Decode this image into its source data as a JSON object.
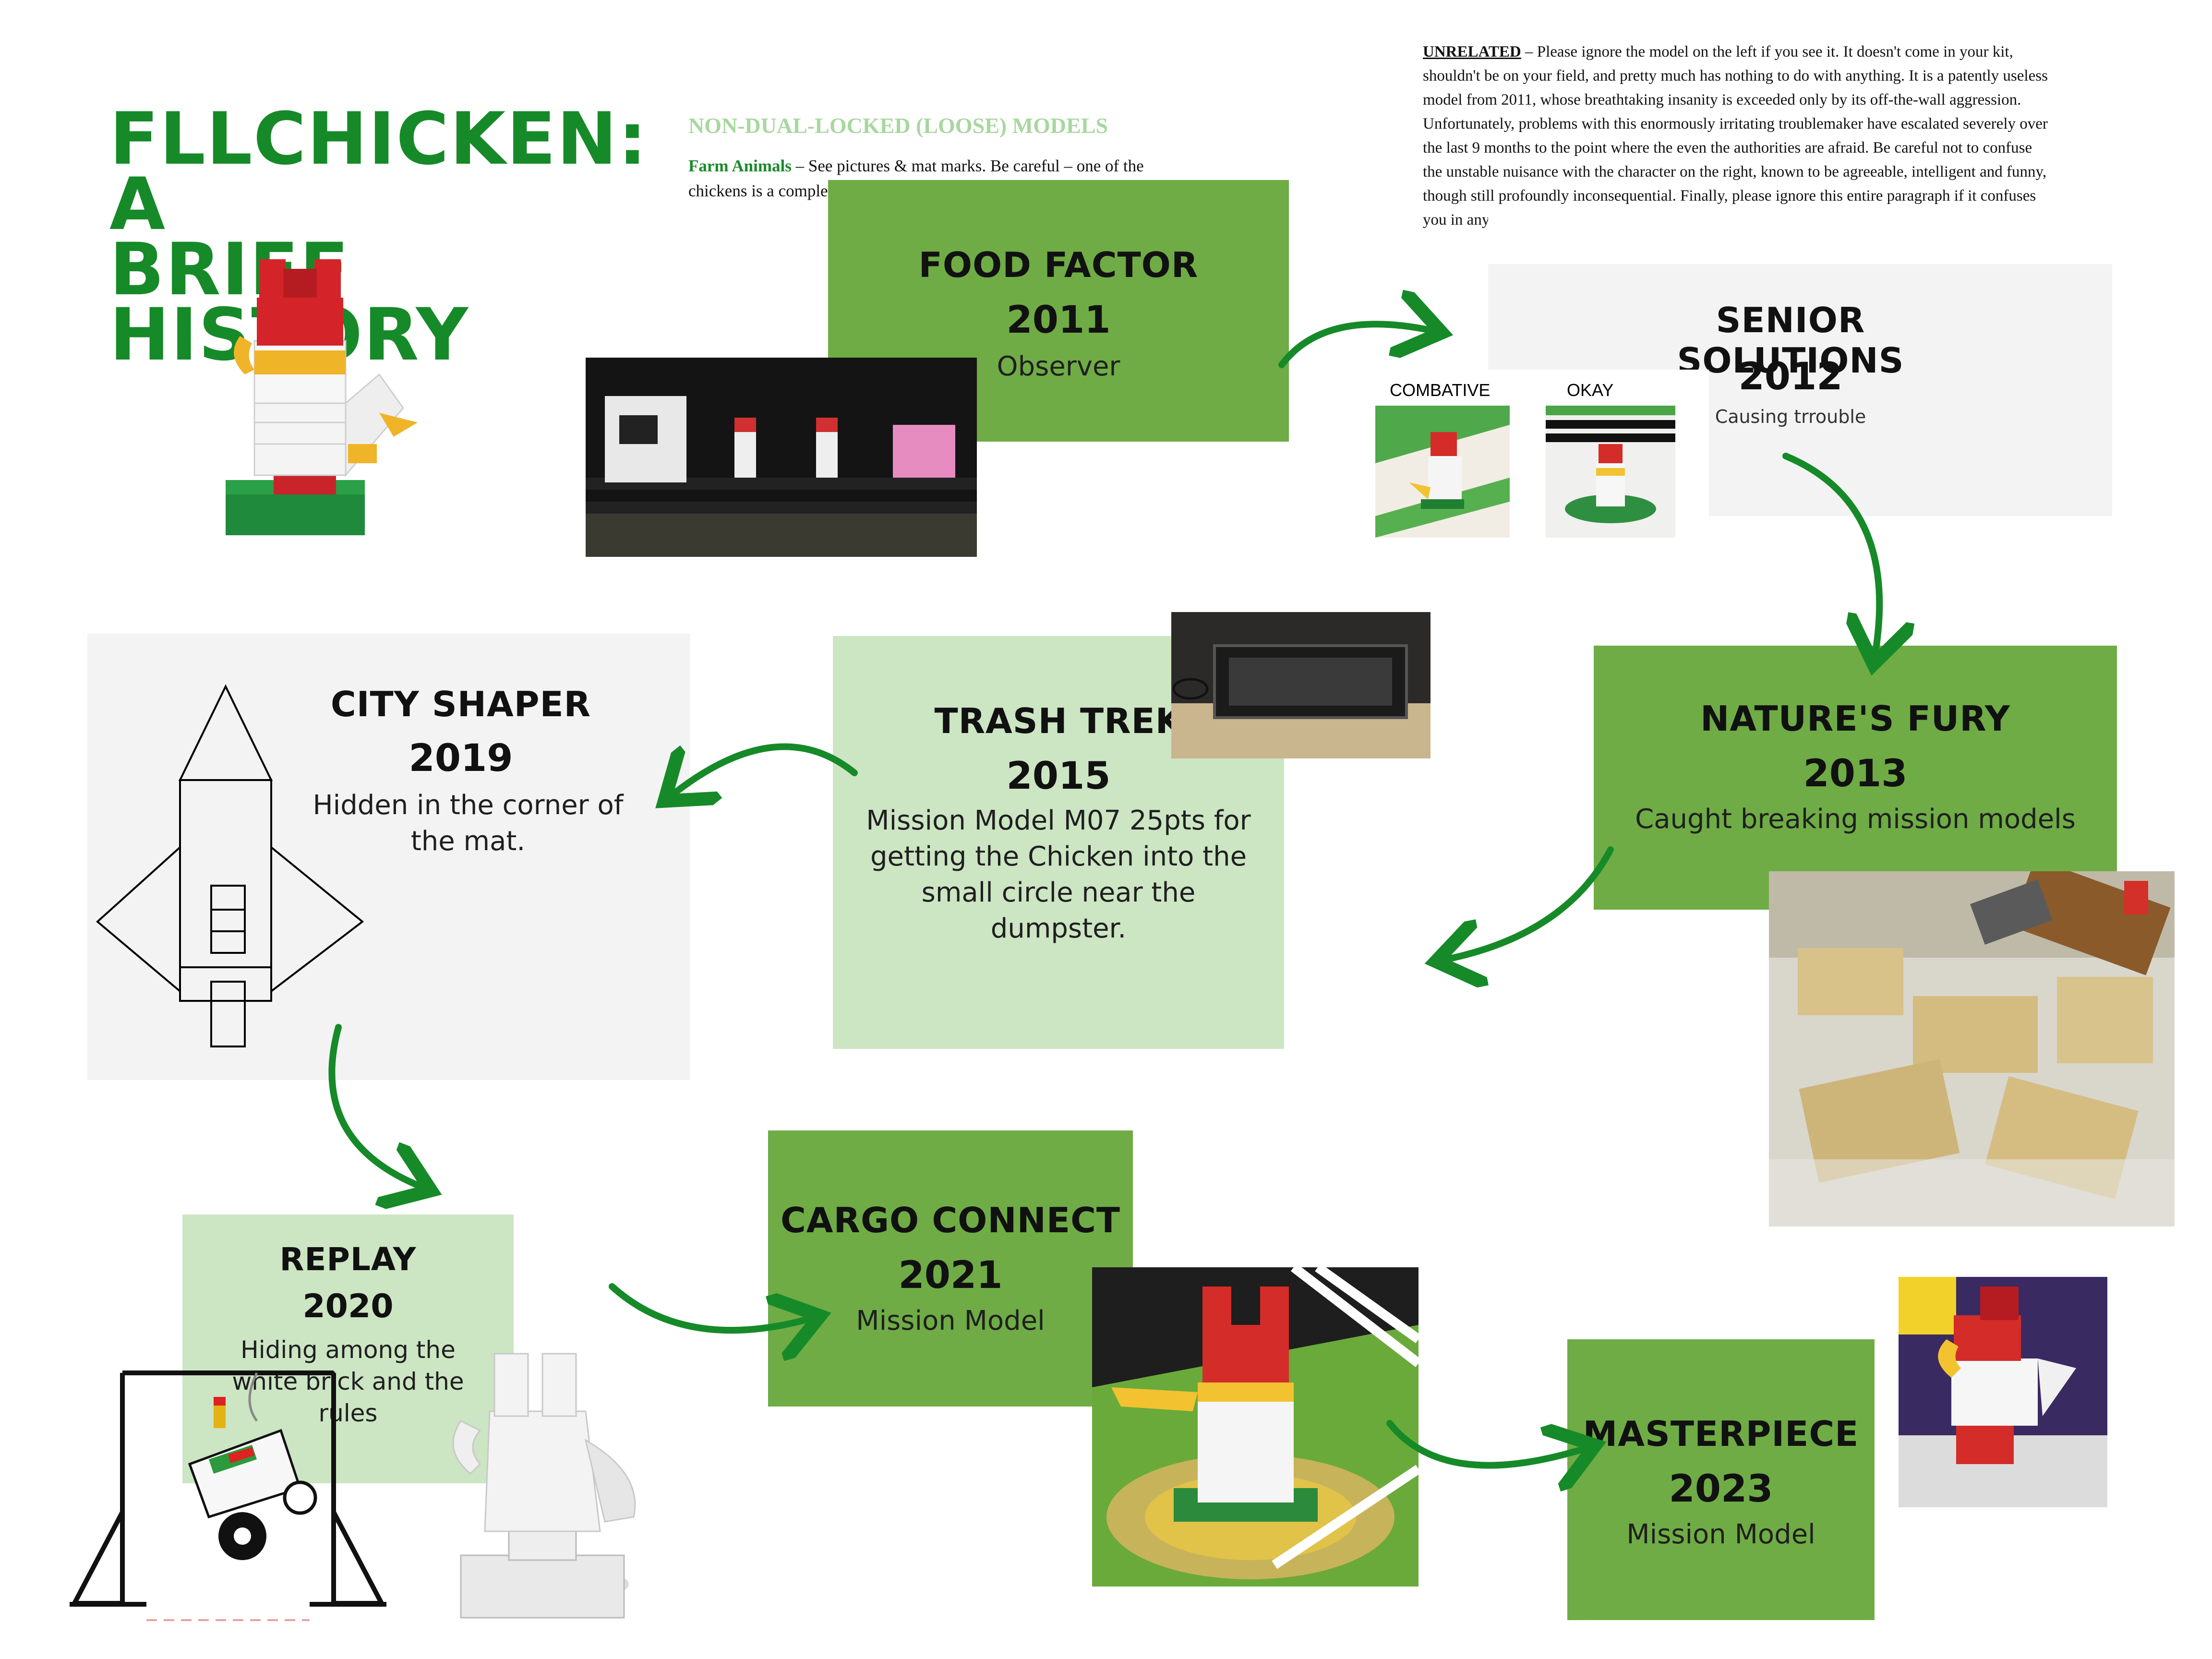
{
  "title_line1": "FLLCHICKEN: A",
  "title_line2": "BRIEF HISTORY",
  "loose_note": {
    "heading": "NON-DUAL-LOCKED (LOOSE) MODELS",
    "label": "Farm Animals",
    "text": " – See pictures & mat marks. Be careful – one of the chickens is a complete lunatic."
  },
  "unrelated_note": {
    "label": "UNRELATED",
    "text": " – Please ignore the model on the left if you see it.  It doesn't come in your kit, shouldn't be on your field, and pretty much has nothing to do with anything.  It is a patently useless model from 2011, whose breathtaking insanity is exceeded only by its off-the-wall aggression.  Unfortunately, problems with this enormously irritating troublemaker have escalated severely over the last 9 months to the point where the even the authorities are afraid.  Be careful not to confuse the unstable nuisance with the character on the right, known to be agreeable, intelligent and funny, though still profoundly inconsequential.  Finally, please ignore this entire paragraph if it confuses you in any way."
  },
  "photo_labels": {
    "combative": "COMBATIVE",
    "okay": "OKAY"
  },
  "cards": {
    "food_factor": {
      "title": "FOOD FACTOR",
      "year": "2011",
      "desc": "Observer"
    },
    "senior_solutions": {
      "title": "SENIOR SOLUTIONS",
      "year": "2012",
      "desc": "Causing trrouble"
    },
    "natures_fury": {
      "title": "NATURE'S FURY",
      "year": "2013",
      "desc": "Caught breaking mission models"
    },
    "trash_trek": {
      "title": "TRASH TREK",
      "year": "2015",
      "desc": "Mission Model M07 25pts for getting the Chicken into the small circle near the dumpster."
    },
    "city_shaper": {
      "title": "CITY SHAPER",
      "year": "2019",
      "desc": "Hidden in the corner of the mat."
    },
    "replay": {
      "title": "REPLAY",
      "year": "2020",
      "desc": "Hiding among the white brick and the rules"
    },
    "cargo_connect": {
      "title": "CARGO CONNECT",
      "year": "2021",
      "desc": "Mission Model"
    },
    "masterpiece": {
      "title": "MASTERPIECE",
      "year": "2023",
      "desc": "Mission Model"
    }
  },
  "colors": {
    "title_green": "#168a28",
    "dark_card": "#6fac45",
    "light_card": "#cce5c3",
    "grey_card": "#f3f3f3",
    "arrow_green": "#168a28"
  },
  "icons": [
    "lego-chicken-icon",
    "rocket-outline-icon",
    "curved-arrow-icon"
  ]
}
